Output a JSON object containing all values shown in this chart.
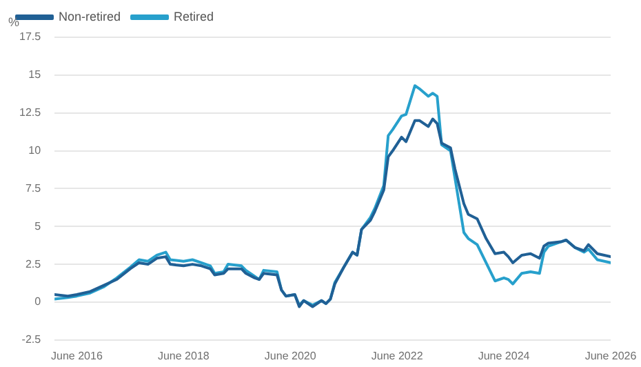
{
  "chart_data": {
    "type": "line",
    "ylabel": "%",
    "x": [
      "2016-01",
      "2016-04",
      "2016-06",
      "2016-09",
      "2016-12",
      "2017-03",
      "2017-06",
      "2017-08",
      "2017-10",
      "2017-12",
      "2018-02",
      "2018-03",
      "2018-06",
      "2018-08",
      "2018-10",
      "2018-12",
      "2019-01",
      "2019-03",
      "2019-04",
      "2019-07",
      "2019-08",
      "2019-10",
      "2019-11",
      "2019-12",
      "2020-03",
      "2020-04",
      "2020-05",
      "2020-07",
      "2020-08",
      "2020-09",
      "2020-11",
      "2021-01",
      "2021-02",
      "2021-03",
      "2021-04",
      "2021-06",
      "2021-08",
      "2021-09",
      "2021-10",
      "2021-12",
      "2022-01",
      "2022-03",
      "2022-04",
      "2022-05",
      "2022-07",
      "2022-08",
      "2022-10",
      "2022-11",
      "2023-01",
      "2023-02",
      "2023-03",
      "2023-04",
      "2023-06",
      "2023-07",
      "2023-09",
      "2023-10",
      "2023-12",
      "2024-02",
      "2024-04",
      "2024-06",
      "2024-07",
      "2024-08",
      "2024-10",
      "2024-12",
      "2025-02",
      "2025-03",
      "2025-04",
      "2025-07",
      "2025-08",
      "2025-10",
      "2025-12",
      "2026-01",
      "2026-03",
      "2026-06"
    ],
    "series": [
      {
        "name": "Non-retired",
        "color": "#206095",
        "values": [
          0.5,
          0.4,
          0.5,
          0.7,
          1.1,
          1.5,
          2.2,
          2.6,
          2.5,
          2.9,
          3.0,
          2.5,
          2.4,
          2.5,
          2.4,
          2.2,
          1.8,
          1.9,
          2.2,
          2.2,
          1.9,
          1.6,
          1.5,
          1.9,
          1.8,
          0.8,
          0.4,
          0.5,
          -0.3,
          0.1,
          -0.3,
          0.1,
          -0.1,
          0.2,
          1.2,
          2.3,
          3.3,
          3.1,
          4.8,
          5.4,
          6.0,
          7.4,
          9.6,
          10.0,
          10.9,
          10.6,
          12.0,
          12.0,
          11.6,
          12.1,
          11.8,
          10.5,
          10.2,
          8.8,
          6.5,
          5.8,
          5.5,
          4.2,
          3.2,
          3.3,
          3.0,
          2.6,
          3.1,
          3.2,
          2.9,
          3.7,
          3.9,
          4.0,
          4.1,
          3.6,
          3.4,
          3.8,
          3.2,
          3.0
        ]
      },
      {
        "name": "Retired",
        "color": "#27a0cc",
        "values": [
          0.2,
          0.3,
          0.4,
          0.6,
          1.0,
          1.6,
          2.3,
          2.8,
          2.7,
          3.1,
          3.3,
          2.8,
          2.7,
          2.8,
          2.6,
          2.4,
          1.9,
          2.0,
          2.5,
          2.4,
          2.1,
          1.7,
          1.5,
          2.1,
          2.0,
          0.8,
          0.4,
          0.5,
          -0.2,
          0.1,
          -0.2,
          0.1,
          -0.1,
          0.2,
          1.3,
          2.3,
          3.3,
          3.1,
          4.8,
          5.6,
          6.2,
          7.7,
          11.0,
          11.4,
          12.3,
          12.4,
          14.3,
          14.1,
          13.6,
          13.8,
          13.6,
          10.4,
          10.0,
          8.2,
          4.6,
          4.2,
          3.8,
          2.6,
          1.4,
          1.6,
          1.5,
          1.2,
          1.9,
          2.0,
          1.9,
          3.3,
          3.7,
          4.0,
          4.1,
          3.6,
          3.3,
          3.5,
          2.8,
          2.6
        ]
      }
    ],
    "xlim": [
      "2016-01",
      "2026-06"
    ],
    "xticks": [
      {
        "value": "2016-06",
        "label": "June 2016"
      },
      {
        "value": "2018-06",
        "label": "June 2018"
      },
      {
        "value": "2020-06",
        "label": "June 2020"
      },
      {
        "value": "2022-06",
        "label": "June 2022"
      },
      {
        "value": "2024-06",
        "label": "June 2024"
      },
      {
        "value": "2026-06",
        "label": "June 2026"
      }
    ],
    "ylim": [
      -2.5,
      17.5
    ],
    "yticks": [
      -2.5,
      0,
      2.5,
      5,
      7.5,
      10,
      12.5,
      15,
      17.5
    ],
    "grid": "y",
    "legend": "top left",
    "marker": "none",
    "line_style": "solid"
  }
}
